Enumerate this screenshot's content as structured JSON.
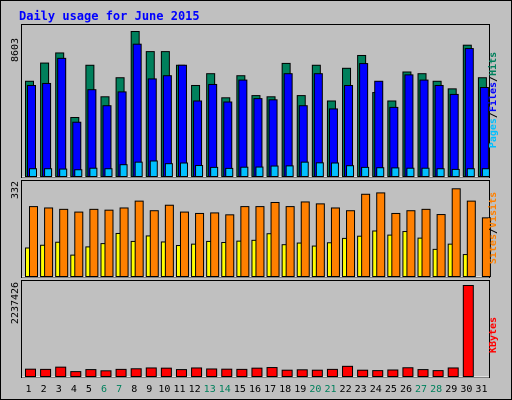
{
  "chart_data": {
    "type": "bar",
    "title": "Daily usage for June 2015",
    "days": [
      "1",
      "2",
      "3",
      "4",
      "5",
      "6",
      "7",
      "8",
      "9",
      "10",
      "11",
      "12",
      "13",
      "14",
      "15",
      "16",
      "17",
      "18",
      "19",
      "20",
      "21",
      "22",
      "23",
      "24",
      "25",
      "26",
      "27",
      "28",
      "29",
      "30",
      "31"
    ],
    "weekend_days": [
      6,
      7,
      13,
      14,
      20,
      21,
      27,
      28
    ],
    "colors": {
      "hits": "#00805c",
      "files": "#0000ff",
      "pages": "#00c0ff",
      "visits": "#ff8000",
      "sites": "#ffff00",
      "kbytes": "#ff0000",
      "background": "#c0c0c0",
      "title": "#0000ff"
    },
    "top_panel": {
      "max_label": "8603",
      "ymax": 8603,
      "legend": [
        {
          "text": "Hits",
          "color": "#00805c"
        },
        {
          "text": "/",
          "color": "#000000"
        },
        {
          "text": "Files",
          "color": "#0000ff"
        },
        {
          "text": "/",
          "color": "#000000"
        },
        {
          "text": "Pages",
          "color": "#00c0ff"
        }
      ],
      "series": [
        {
          "name": "Hits",
          "values": [
            5650,
            6730,
            7330,
            3500,
            6600,
            4730,
            5860,
            8603,
            7410,
            7410,
            6600,
            5400,
            6100,
            4670,
            5980,
            4800,
            4730,
            6710,
            4800,
            6600,
            4480,
            6420,
            7180,
            4980,
            4480,
            6200,
            6100,
            5650,
            5200,
            7790,
            5860
          ]
        },
        {
          "name": "Files",
          "values": [
            5400,
            5520,
            7010,
            3220,
            5150,
            4200,
            5020,
            7850,
            5790,
            5980,
            6600,
            4480,
            5460,
            4420,
            5720,
            4620,
            4550,
            6100,
            4200,
            6100,
            4010,
            5400,
            6700,
            5650,
            4100,
            6030,
            5720,
            5400,
            4870,
            7590,
            5280
          ]
        },
        {
          "name": "Pages",
          "values": [
            460,
            460,
            440,
            400,
            490,
            460,
            700,
            850,
            920,
            760,
            800,
            650,
            540,
            480,
            550,
            560,
            620,
            630,
            850,
            810,
            800,
            640,
            540,
            520,
            510,
            490,
            490,
            460,
            420,
            460,
            460
          ]
        }
      ]
    },
    "middle_panel": {
      "max_label": "332",
      "ymax": 332,
      "legend": [
        {
          "text": "Visits",
          "color": "#ff8000"
        },
        {
          "text": "/",
          "color": "#000000"
        },
        {
          "text": "Sites",
          "color": "#ff8000"
        }
      ],
      "series": [
        {
          "name": "Visits",
          "values": [
            255,
            250,
            245,
            235,
            245,
            242,
            250,
            275,
            240,
            260,
            235,
            230,
            232,
            225,
            255,
            255,
            270,
            255,
            272,
            265,
            250,
            240,
            300,
            305,
            230,
            240,
            245,
            226,
            320,
            275,
            214
          ]
        },
        {
          "name": "Sites",
          "values": [
            104,
            114,
            125,
            78,
            108,
            120,
            157,
            128,
            148,
            126,
            113,
            118,
            128,
            124,
            129,
            132,
            156,
            116,
            122,
            111,
            123,
            139,
            147,
            166,
            151,
            164,
            140,
            99,
            118,
            80,
            0
          ]
        }
      ]
    },
    "bottom_panel": {
      "max_label": "2237426",
      "ymax": 2237426,
      "legend": [
        {
          "text": "KBytes",
          "color": "#ff0000"
        }
      ],
      "series": [
        {
          "name": "KBytes",
          "values": [
            180000,
            175000,
            230000,
            120000,
            170000,
            140000,
            175000,
            190000,
            210000,
            205000,
            170000,
            210000,
            185000,
            180000,
            175000,
            205000,
            220000,
            155000,
            165000,
            155000,
            175000,
            250000,
            155000,
            145000,
            160000,
            215000,
            170000,
            145000,
            210000,
            2237426,
            0
          ]
        }
      ]
    }
  }
}
